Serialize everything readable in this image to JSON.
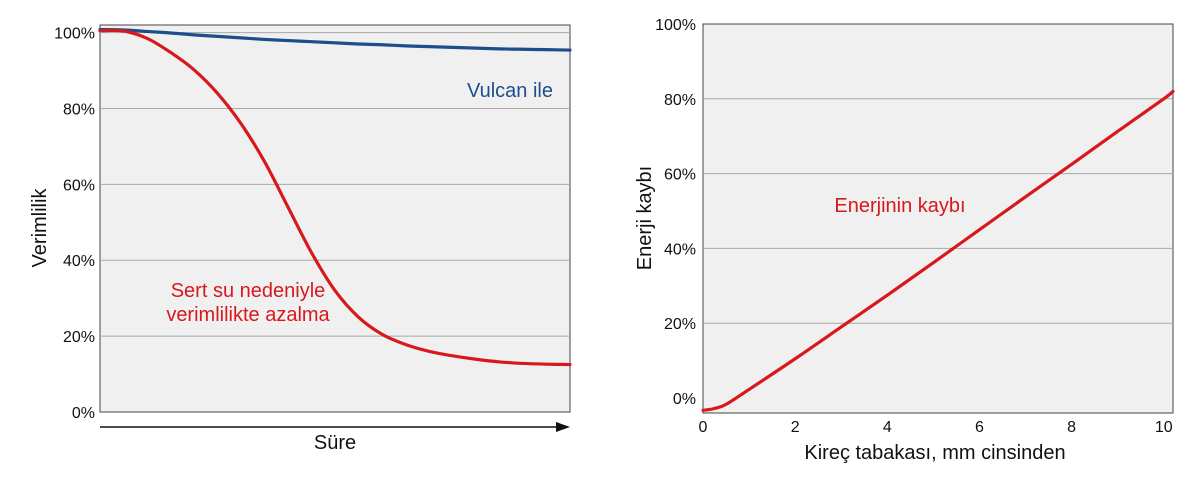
{
  "chart_data": [
    {
      "type": "line",
      "title": "",
      "xlabel": "Süre",
      "ylabel": "Verimlilik",
      "ylim": [
        0,
        100
      ],
      "y_ticks": [
        "0%",
        "20%",
        "40%",
        "60%",
        "80%",
        "100%"
      ],
      "x_ticks": [],
      "grid": true,
      "x": [
        0,
        0.05,
        0.1,
        0.15,
        0.2,
        0.25,
        0.3,
        0.35,
        0.4,
        0.45,
        0.5,
        0.55,
        0.6,
        0.65,
        0.7,
        0.75,
        0.8,
        0.85,
        0.9,
        0.95,
        1
      ],
      "series": [
        {
          "name": "Vulcan ile",
          "color": "#1d4e89",
          "values": [
            100.8,
            100.7,
            100.3,
            99.9,
            99.4,
            99.0,
            98.6,
            98.2,
            97.9,
            97.6,
            97.3,
            97.0,
            96.8,
            96.5,
            96.3,
            96.1,
            95.9,
            95.7,
            95.6,
            95.5,
            95.4
          ]
        },
        {
          "name": "Sert su nedeniyle verimlilikte azalma",
          "color": "#d7191c",
          "values": [
            100.5,
            100.4,
            98.5,
            94.8,
            90.2,
            84.0,
            76.0,
            66.0,
            54.0,
            42.0,
            32.0,
            25.0,
            20.5,
            17.8,
            16.0,
            14.8,
            13.9,
            13.2,
            12.8,
            12.6,
            12.5
          ]
        }
      ],
      "annotations": [
        {
          "text": "Vulcan ile",
          "color": "#1d4e89"
        },
        {
          "text": "Sert su nedeniyle",
          "color": "#d7191c"
        },
        {
          "text": "verimlilikte azalma",
          "color": "#d7191c"
        }
      ]
    },
    {
      "type": "line",
      "title": "",
      "xlabel": "Kireç tabakası, mm cinsinden",
      "ylabel": "Enerji kaybı",
      "xlim": [
        0,
        10.2
      ],
      "ylim": [
        -4,
        100
      ],
      "x_ticks": [
        "0",
        "2",
        "4",
        "6",
        "8",
        "10"
      ],
      "y_ticks": [
        "0%",
        "20%",
        "40%",
        "60%",
        "80%",
        "100%"
      ],
      "grid": true,
      "series": [
        {
          "name": "Enerjinin kaybı",
          "color": "#d7191c",
          "x": [
            0,
            0.25,
            0.5,
            1,
            2,
            3,
            4,
            5,
            6,
            7,
            8,
            9,
            10,
            10.2
          ],
          "y": [
            -3.3,
            -2.8,
            -1.7,
            2.3,
            10.5,
            19.0,
            27.5,
            36.2,
            45.0,
            53.8,
            62.5,
            71.3,
            80.0,
            82.0
          ]
        }
      ],
      "annotations": [
        {
          "text": "Enerjinin kaybı",
          "color": "#d7191c"
        }
      ]
    }
  ]
}
